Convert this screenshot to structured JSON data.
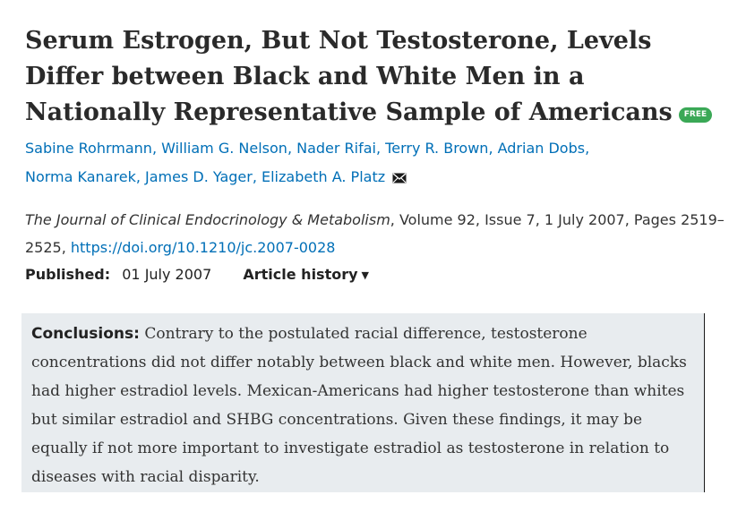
{
  "article": {
    "title": "Serum Estrogen, But Not Testosterone, Levels Differ between Black and White Men in a Nationally Representative Sample of Americans",
    "free_badge": "FREE"
  },
  "authors": [
    "Sabine Rohrmann",
    "William G. Nelson",
    "Nader Rifai",
    "Terry R. Brown",
    "Adrian Dobs",
    "Norma Kanarek",
    "James D. Yager",
    "Elizabeth A. Platz"
  ],
  "citation": {
    "journal": "The Journal of Clinical Endocrinology & Metabolism",
    "details": ", Volume 92, Issue 7, 1 July 2007, Pages 2519–2525, ",
    "doi": "https://doi.org/10.1210/jc.2007-0028"
  },
  "publication": {
    "published_label": "Published:",
    "published_date": "01 July 2007",
    "history_label": "Article history"
  },
  "abstract": {
    "label": "Conclusions:",
    "text": " Contrary to the postulated racial difference, testosterone concentrations did not differ notably between black and white men. However, blacks had higher estradiol levels. Mexican-Americans had higher testosterone than whites but similar estradiol and SHBG concentrations. Given these findings, it may be equally if not more important to investigate estradiol as testosterone in relation to diseases with racial disparity."
  },
  "icons": {
    "free": "free-badge-icon",
    "mail": "envelope-icon",
    "history": "triangle-down-icon"
  },
  "colors": {
    "link": "#006fb7",
    "badge": "#3aa856",
    "abstract_bg": "#e8ecef"
  }
}
